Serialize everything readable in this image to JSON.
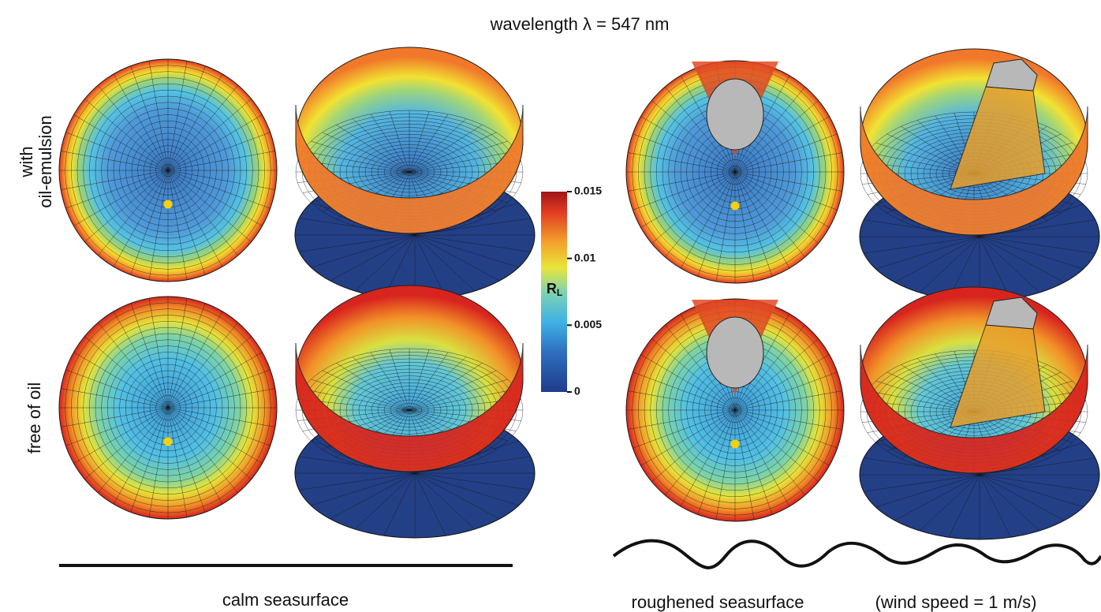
{
  "header": {
    "title": "wavelength λ = 547 nm"
  },
  "rows": [
    {
      "label_lines": [
        "with",
        "oil-emulsion"
      ]
    },
    {
      "label_lines": [
        "free of oil"
      ]
    }
  ],
  "colorbar": {
    "label": "R",
    "label_subscript": "L",
    "lim": [
      0,
      0.015
    ],
    "ticks": [
      0,
      0.005,
      0.01,
      0.015
    ]
  },
  "footer": {
    "left": "calm seasurface",
    "right": "roughened seasurface",
    "right_note": "(wind speed = 1 m/s)"
  }
}
